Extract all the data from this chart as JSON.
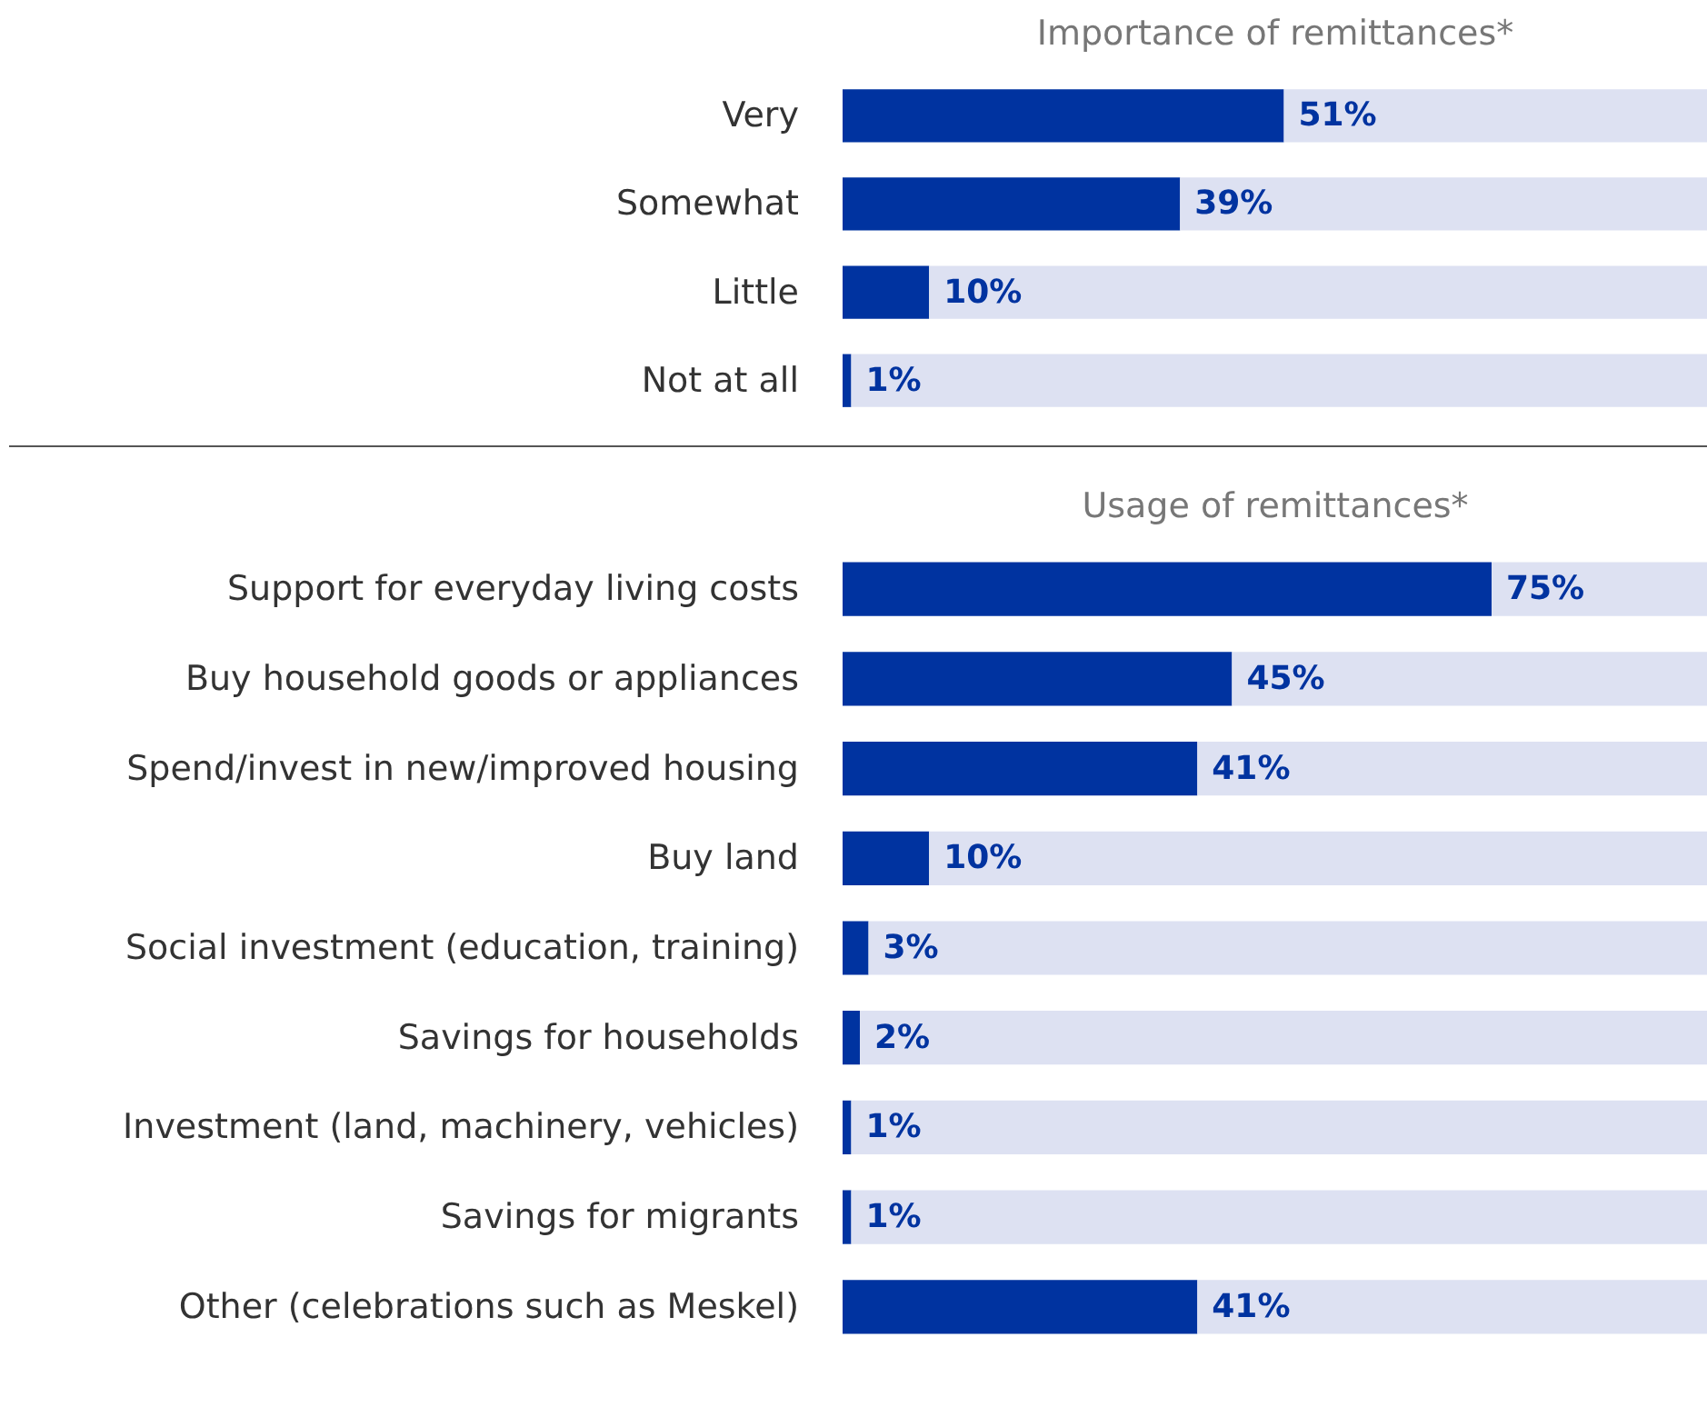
{
  "chart_data": [
    {
      "type": "bar",
      "orientation": "horizontal",
      "stacked": true,
      "xlim": [
        0,
        100
      ],
      "title": "Importance of remittances*",
      "categories": [
        "Very",
        "Somewhat",
        "Little",
        "Not at all"
      ],
      "series": [
        {
          "color": "#0033a0",
          "values": [
            51,
            39,
            10,
            1
          ],
          "value_labels": [
            "51%",
            "39%",
            "10%",
            "1%"
          ]
        },
        {
          "color": "#dde1f2",
          "values": [
            49,
            61,
            90,
            99
          ]
        }
      ],
      "tick_labels": "y"
    },
    {
      "type": "bar",
      "orientation": "horizontal",
      "stacked": true,
      "xlim": [
        0,
        100
      ],
      "title": "Usage of remittances*",
      "categories": [
        "Support for everyday living costs",
        "Buy household goods or appliances",
        "Spend/invest in new/improved housing",
        "Buy land",
        "Social investment (education, training)",
        "Savings for households",
        "Investment (land, machinery, vehicles)",
        "Savings for migrants",
        "Other (celebrations such as Meskel)"
      ],
      "series": [
        {
          "color": "#0033a0",
          "values": [
            75,
            45,
            41,
            10,
            3,
            2,
            1,
            1,
            41
          ],
          "value_labels": [
            "75%",
            "45%",
            "41%",
            "10%",
            "3%",
            "2%",
            "1%",
            "1%",
            "41%"
          ]
        },
        {
          "color": "#dde1f2",
          "values": [
            25,
            55,
            59,
            90,
            97,
            98,
            99,
            99,
            59
          ]
        }
      ],
      "tick_labels": "y"
    }
  ]
}
